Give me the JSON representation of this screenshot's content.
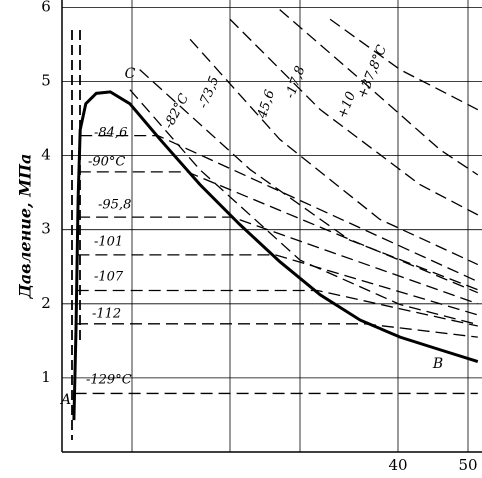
{
  "chart_data": {
    "type": "line",
    "ylabel": "Давление, МПа",
    "xlim": [
      -8,
      52
    ],
    "ylim": [
      0,
      6.1
    ],
    "xticks": [
      {
        "value": 2,
        "label": null
      },
      {
        "value": 16,
        "label": null
      },
      {
        "value": 26,
        "label": null
      },
      40,
      50
    ],
    "yticks": [
      1,
      2,
      3,
      4,
      5,
      6
    ],
    "grid": true,
    "saturation_curve": {
      "color": "#000000",
      "x": [
        -6.3,
        -6.0,
        -5.7,
        -5.4,
        -4.6,
        -3.1,
        -1.1,
        1.7,
        6.0,
        11.7,
        17.4,
        23.1,
        28.9,
        34.6,
        40.3,
        46.0,
        51.4
      ],
      "values": [
        0.43,
        1.65,
        3.41,
        4.35,
        4.7,
        4.84,
        4.86,
        4.7,
        4.22,
        3.61,
        3.07,
        2.57,
        2.12,
        1.78,
        1.55,
        1.38,
        1.22
      ]
    },
    "series": [
      {
        "name": "-129°C",
        "color": "#000000",
        "x": [
          -6.2,
          51.4
        ],
        "values": [
          0.79,
          0.79
        ]
      },
      {
        "name": "-112",
        "color": "#000000",
        "x": [
          -6.0,
          35.3,
          51.4
        ],
        "values": [
          1.73,
          1.73,
          1.55
        ]
      },
      {
        "name": "-107",
        "color": "#000000",
        "x": [
          -5.9,
          28.5,
          51.4
        ],
        "values": [
          2.18,
          2.18,
          1.7
        ]
      },
      {
        "name": "-101",
        "color": "#000000",
        "x": [
          -5.8,
          22.5,
          51.4
        ],
        "values": [
          2.66,
          2.66,
          1.85
        ]
      },
      {
        "name": "-95,8",
        "color": "#000000",
        "x": [
          -5.7,
          16.3,
          51.4
        ],
        "values": [
          3.17,
          3.17,
          2.0
        ]
      },
      {
        "name": "-90°C",
        "color": "#000000",
        "x": [
          -5.6,
          9.9,
          51.4
        ],
        "values": [
          3.78,
          3.78,
          2.15
        ]
      },
      {
        "name": "-84,6",
        "color": "#000000",
        "x": [
          -5.4,
          5.7,
          51.4
        ],
        "values": [
          4.27,
          4.27,
          2.3
        ]
      },
      {
        "name": "-82°C",
        "color": "#000000",
        "x": [
          1.7,
          11.7,
          26,
          40.3,
          51.4
        ],
        "values": [
          4.89,
          3.81,
          2.59,
          1.99,
          1.72
        ]
      },
      {
        "name": "-73,5",
        "color": "#000000",
        "x": [
          3.1,
          18.9,
          33.1,
          51.4
        ],
        "values": [
          5.16,
          3.81,
          2.86,
          2.19
        ]
      },
      {
        "name": "45,6",
        "color": "#000000",
        "x": [
          10.3,
          23.1,
          37.4,
          51.4
        ],
        "values": [
          5.57,
          4.22,
          3.14,
          2.53
        ]
      },
      {
        "name": "-17,8",
        "color": "#000000",
        "x": [
          16,
          28.9,
          43.1,
          51.4
        ],
        "values": [
          5.84,
          4.62,
          3.61,
          3.2
        ]
      },
      {
        "name": "+10",
        "color": "#000000",
        "x": [
          23.1,
          34.6,
          46,
          51.4
        ],
        "values": [
          5.97,
          5.03,
          4.08,
          3.74
        ]
      },
      {
        "name": "+37,8°C",
        "color": "#000000",
        "x": [
          30.3,
          40.3,
          51.4
        ],
        "values": [
          5.84,
          5.16,
          4.62
        ]
      }
    ],
    "annotations": [
      "A",
      "B",
      "C"
    ]
  }
}
